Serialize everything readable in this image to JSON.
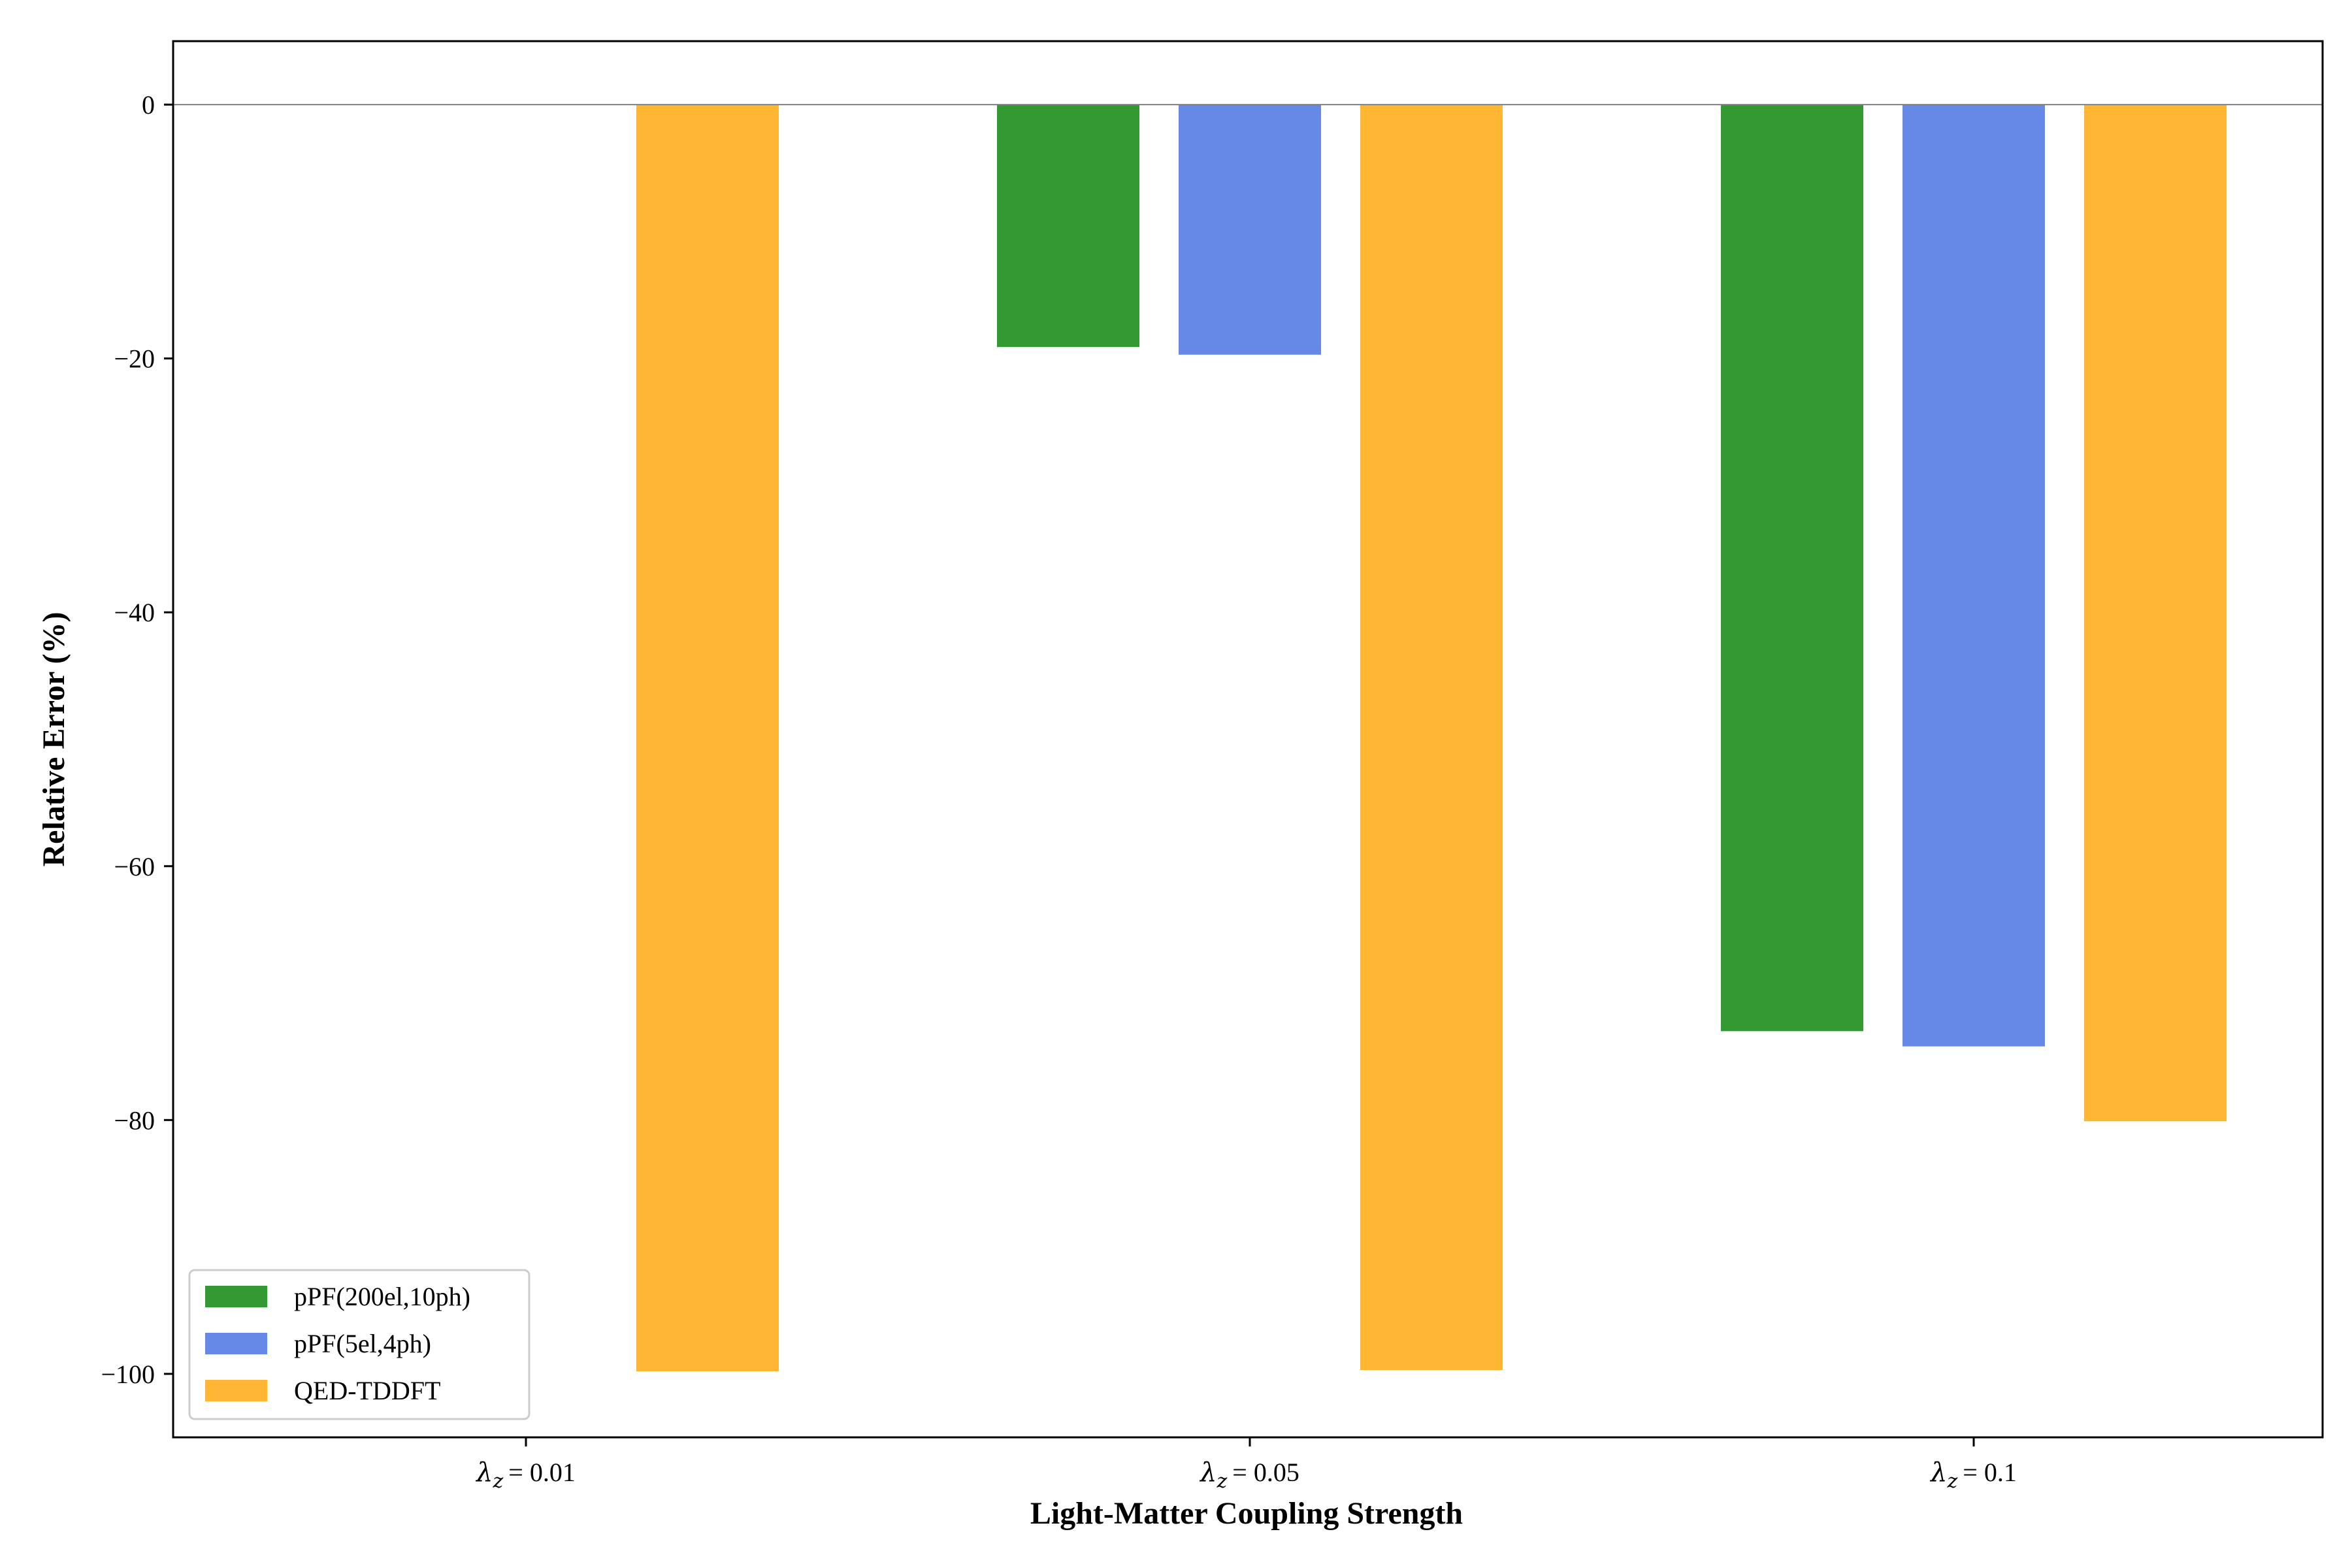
{
  "chart_data": {
    "type": "bar",
    "title": "",
    "xlabel": "Light-Matter Coupling Strength",
    "ylabel": "Relative Error (%)",
    "ylim": [
      -105,
      5
    ],
    "yticks": [
      0,
      -20,
      -40,
      -60,
      -80,
      -100
    ],
    "ytick_labels": [
      "0",
      "−20",
      "−40",
      "−60",
      "−80",
      "−100"
    ],
    "categories": [
      {
        "symbol": "λ",
        "sub": "z",
        "value": "= 0.01"
      },
      {
        "symbol": "λ",
        "sub": "z",
        "value": "= 0.05"
      },
      {
        "symbol": "λ",
        "sub": "z",
        "value": "= 0.1"
      }
    ],
    "series": [
      {
        "name": "pPF(200el,10ph)",
        "color": "#339933",
        "values": [
          0,
          -19.1,
          -73.0
        ]
      },
      {
        "name": "pPF(5el,4ph)",
        "color": "#6688e6",
        "values": [
          0,
          -19.7,
          -74.2
        ]
      },
      {
        "name": "QED-TDDFT",
        "color": "#ffb733",
        "values": [
          -99.8,
          -99.7,
          -80.1
        ]
      }
    ],
    "reference_line": 0,
    "legend_position": "lower-left",
    "grid": false
  }
}
